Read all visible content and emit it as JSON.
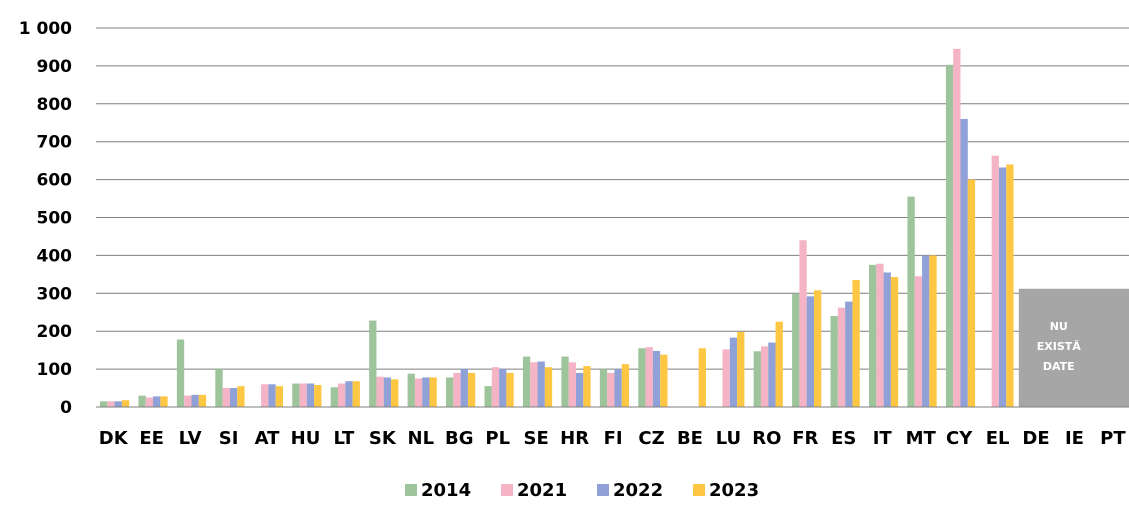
{
  "chart_data": {
    "type": "bar",
    "categories": [
      "DK",
      "EE",
      "LV",
      "SI",
      "AT",
      "HU",
      "LT",
      "SK",
      "NL",
      "BG",
      "PL",
      "SE",
      "HR",
      "FI",
      "CZ",
      "BE",
      "LU",
      "RO",
      "FR",
      "ES",
      "IT",
      "MT",
      "CY",
      "EL",
      "DE",
      "IE",
      "PT"
    ],
    "series": [
      {
        "name": "2014",
        "color": "#9dc49a",
        "values": [
          15,
          30,
          178,
          100,
          null,
          62,
          52,
          228,
          88,
          78,
          55,
          133,
          133,
          100,
          155,
          null,
          null,
          147,
          298,
          240,
          375,
          555,
          903,
          null,
          null,
          null,
          null
        ]
      },
      {
        "name": "2021",
        "color": "#f5b3c6",
        "values": [
          15,
          25,
          30,
          50,
          60,
          62,
          62,
          80,
          75,
          90,
          105,
          118,
          118,
          90,
          158,
          null,
          152,
          160,
          440,
          262,
          378,
          345,
          945,
          663,
          null,
          null,
          null
        ]
      },
      {
        "name": "2022",
        "color": "#8fa1d6",
        "values": [
          15,
          28,
          32,
          50,
          60,
          62,
          68,
          78,
          78,
          100,
          100,
          120,
          90,
          100,
          148,
          null,
          183,
          170,
          292,
          278,
          355,
          400,
          760,
          632,
          null,
          null,
          null
        ]
      },
      {
        "name": "2023",
        "color": "#fdc743",
        "values": [
          18,
          28,
          32,
          55,
          55,
          58,
          68,
          73,
          78,
          90,
          90,
          105,
          108,
          113,
          138,
          155,
          198,
          225,
          308,
          335,
          343,
          400,
          600,
          640,
          null,
          null,
          null
        ]
      }
    ],
    "ylim": [
      0,
      1000
    ],
    "yticks": [
      0,
      100,
      200,
      300,
      400,
      500,
      600,
      700,
      800,
      900,
      1000
    ],
    "ytick_labels": [
      "0",
      "100",
      "200",
      "300",
      "400",
      "500",
      "600",
      "700",
      "800",
      "900",
      "1 000"
    ],
    "grid": true,
    "legend_position": "bottom",
    "annotation": {
      "lines": [
        "NU",
        "EXISTĂ",
        "DATE"
      ],
      "categories": [
        "DE",
        "IE",
        "PT"
      ],
      "value": 312,
      "color": "#a6a6a6"
    }
  }
}
